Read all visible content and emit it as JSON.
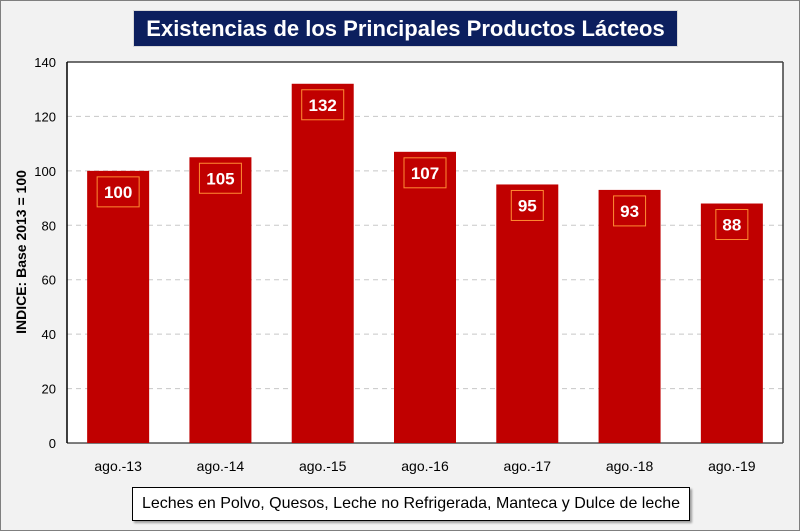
{
  "chart_data": {
    "type": "bar",
    "title": "Existencias de los Principales Productos Lácteos",
    "categories": [
      "ago.-13",
      "ago.-14",
      "ago.-15",
      "ago.-16",
      "ago.-17",
      "ago.-18",
      "ago.-19"
    ],
    "values": [
      100,
      105,
      132,
      107,
      95,
      93,
      88
    ],
    "data_labels": [
      "100",
      "105",
      "132",
      "107",
      "95",
      "93",
      "88"
    ],
    "xlabel": "",
    "ylabel": "INDICE: Base 2013 = 100",
    "ylim": [
      0,
      140
    ],
    "yticks": [
      0,
      20,
      40,
      60,
      80,
      100,
      120,
      140
    ],
    "grid": "horizontal dashed",
    "legend_note": "Leches en Polvo, Quesos, Leche no Refrigerada, Manteca y Dulce de leche",
    "bar_color": "#c00000",
    "title_bg": "#0c1f5e"
  }
}
